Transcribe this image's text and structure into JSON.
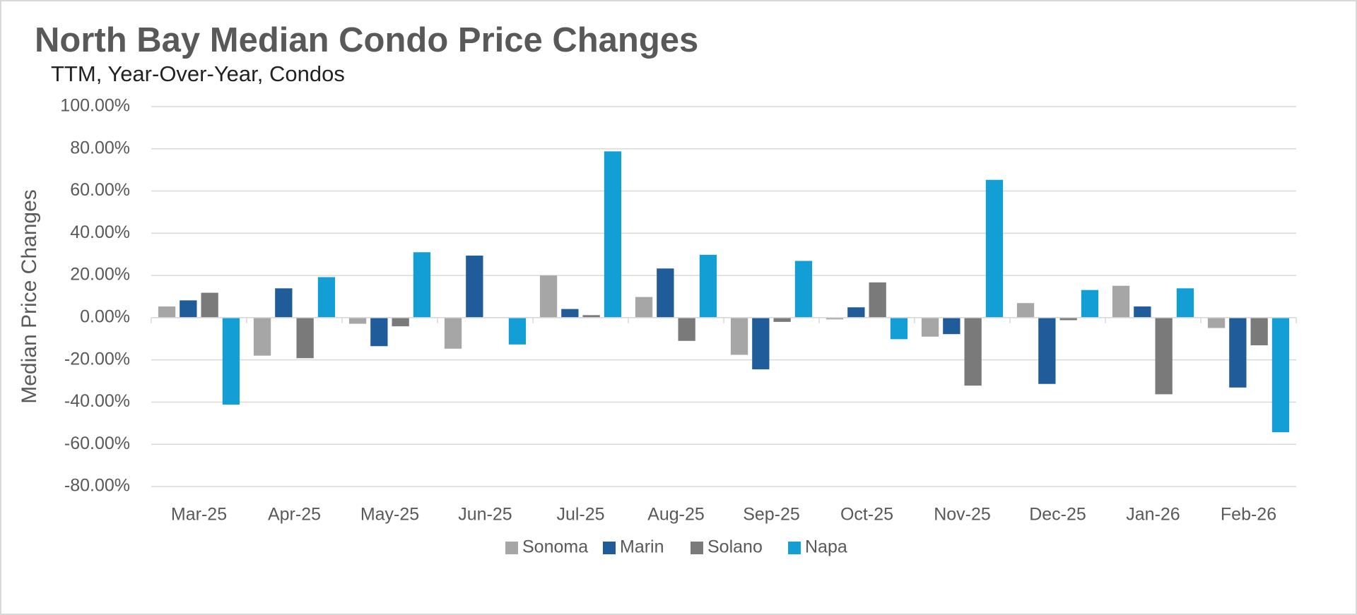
{
  "chart_data": {
    "type": "bar",
    "title": "North Bay Median Condo Price Changes",
    "subtitle": "TTM, Year-Over-Year,  Condos",
    "y_label": "Median Price Changes",
    "categories": [
      "Mar-25",
      "Apr-25",
      "May-25",
      "Jun-25",
      "Jul-25",
      "Aug-25",
      "Sep-25",
      "Oct-25",
      "Nov-25",
      "Dec-25",
      "Jan-26",
      "Feb-26"
    ],
    "series": [
      {
        "name": "Sonoma",
        "color": "#a6a6a6",
        "values": [
          5.3,
          -18.0,
          -2.9,
          -14.7,
          20.0,
          9.8,
          -17.6,
          -0.8,
          -9.0,
          6.9,
          15.1,
          -4.9
        ]
      },
      {
        "name": "Marin",
        "color": "#1f5c99",
        "values": [
          8.2,
          13.9,
          -13.5,
          29.4,
          4.1,
          23.3,
          -24.5,
          4.9,
          -7.8,
          -31.4,
          5.3,
          -33.1
        ]
      },
      {
        "name": "Solano",
        "color": "#7a7a7a",
        "values": [
          11.8,
          -19.2,
          -4.1,
          0,
          1.2,
          -11.0,
          -2.0,
          16.7,
          -32.2,
          -1.2,
          -36.3,
          -13.1
        ]
      },
      {
        "name": "Napa",
        "color": "#139fd6",
        "values": [
          -41.2,
          19.2,
          31.0,
          -12.7,
          78.8,
          29.8,
          26.9,
          -10.2,
          65.3,
          13.1,
          13.9,
          -54.3
        ]
      }
    ],
    "ylim": [
      -80,
      100
    ],
    "yticks": [
      {
        "value": -80,
        "label": "-80.00%"
      },
      {
        "value": -60,
        "label": "-60.00%"
      },
      {
        "value": -40,
        "label": "-40.00%"
      },
      {
        "value": -20,
        "label": "-20.00%"
      },
      {
        "value": 0,
        "label": "0.00%"
      },
      {
        "value": 20,
        "label": "20.00%"
      },
      {
        "value": 40,
        "label": "40.00%"
      },
      {
        "value": 60,
        "label": "60.00%"
      },
      {
        "value": 80,
        "label": "80.00%"
      },
      {
        "value": 100,
        "label": "100.00%"
      }
    ],
    "grid": true,
    "legend": "bottom"
  }
}
